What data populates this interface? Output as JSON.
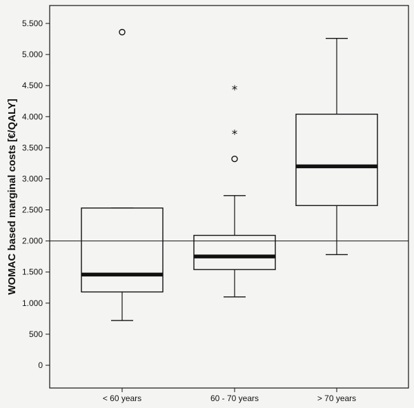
{
  "chart_data": {
    "type": "box",
    "ylabel": "WOMAC based marginal costs [€/QALY]",
    "xlabel": "",
    "ylim": [
      -350,
      5800
    ],
    "yticks": [
      0,
      500,
      1000,
      1500,
      2000,
      2500,
      3000,
      3500,
      4000,
      4500,
      5000,
      5500
    ],
    "ytick_labels": [
      "0",
      "500",
      "1.000",
      "1.500",
      "2.000",
      "2.500",
      "3.000",
      "3.500",
      "4.000",
      "4.500",
      "5.000",
      "5.500"
    ],
    "reference_line": 2000,
    "grid": false,
    "categories": [
      "< 60 years",
      "60 - 70 years",
      "> 70 years"
    ],
    "boxes": [
      {
        "category": "< 60 years",
        "whisker_low": 720,
        "q1": 1180,
        "median": 1460,
        "q3": 2530,
        "whisker_high": 2530,
        "outliers": [
          5360
        ],
        "extremes": []
      },
      {
        "category": "60 - 70 years",
        "whisker_low": 1100,
        "q1": 1540,
        "median": 1750,
        "q3": 2090,
        "whisker_high": 2730,
        "outliers": [
          3320
        ],
        "extremes": [
          3740,
          4460
        ]
      },
      {
        "category": "> 70 years",
        "whisker_low": 1780,
        "q1": 2570,
        "median": 3200,
        "q3": 4040,
        "whisker_high": 5260,
        "outliers": [],
        "extremes": []
      }
    ]
  }
}
